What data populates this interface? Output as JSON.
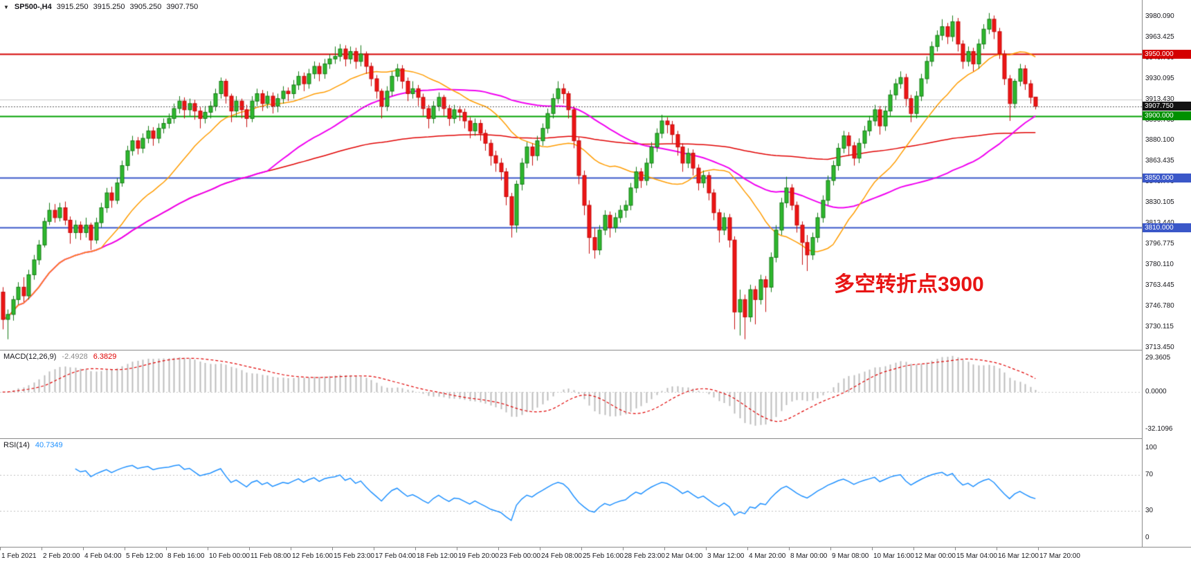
{
  "header": {
    "symbol_timeframe": "SP500-,H4",
    "open": "3915.250",
    "high": "3915.250",
    "low": "3905.250",
    "close": "3907.750"
  },
  "annotation": {
    "text": "多空转折点3900",
    "color": "#e81414"
  },
  "chart_data": {
    "type": "candlestick",
    "symbol": "SP500-",
    "timeframe": "H4",
    "title": "SP500-,H4 3915.250 3915.250 3905.250 3907.750",
    "ylim": [
      3711.5,
      3993.5
    ],
    "last_price": 3907.75,
    "y_ticks": [
      3980.09,
      3963.425,
      3946.76,
      3930.095,
      3913.43,
      3896.765,
      3880.1,
      3863.435,
      3846.77,
      3830.105,
      3813.44,
      3796.775,
      3780.11,
      3763.445,
      3746.78,
      3730.115,
      3713.45
    ],
    "x_labels": [
      "1 Feb 2021",
      "2 Feb 20:00",
      "4 Feb 04:00",
      "5 Feb 12:00",
      "8 Feb 16:00",
      "10 Feb 00:00",
      "11 Feb 08:00",
      "12 Feb 16:00",
      "15 Feb 23:00",
      "17 Feb 04:00",
      "18 Feb 12:00",
      "19 Feb 20:00",
      "23 Feb 00:00",
      "24 Feb 08:00",
      "25 Feb 16:00",
      "28 Feb 23:00",
      "2 Mar 04:00",
      "3 Mar 12:00",
      "4 Mar 20:00",
      "8 Mar 00:00",
      "9 Mar 08:00",
      "10 Mar 16:00",
      "12 Mar 00:00",
      "15 Mar 04:00",
      "16 Mar 12:00",
      "17 Mar 20:00"
    ],
    "hlines": [
      {
        "price": 3950.0,
        "color": "#d40000",
        "width": 2
      },
      {
        "price": 3913.5,
        "color": "#c8c8c8",
        "width": 1
      },
      {
        "price": 3900.0,
        "color": "#00a000",
        "width": 2
      },
      {
        "price": 3850.0,
        "color": "#3a57c8",
        "width": 2
      },
      {
        "price": 3810.0,
        "color": "#3a57c8",
        "width": 2
      }
    ],
    "price_tags": [
      {
        "text": "3950.000",
        "price": 3950.0,
        "bg": "#d40000"
      },
      {
        "text": "3907.750",
        "price": 3907.75,
        "bg": "#131313"
      },
      {
        "text": "3900.000",
        "price": 3900.0,
        "bg": "#009000"
      },
      {
        "text": "3850.000",
        "price": 3850.0,
        "bg": "#3a57c8"
      },
      {
        "text": "3810.000",
        "price": 3810.0,
        "bg": "#3a57c8"
      }
    ],
    "moving_averages": [
      {
        "period": 20,
        "color": "#ff9c00",
        "width": 1.5
      },
      {
        "period": 52,
        "color": "#f000f0",
        "width": 2
      },
      {
        "period": 160,
        "color": "#e00000",
        "width": 1.5
      }
    ],
    "candles": [
      [
        3758,
        3762,
        3728,
        3736
      ],
      [
        3736,
        3744,
        3720,
        3740
      ],
      [
        3740,
        3755,
        3735,
        3752
      ],
      [
        3752,
        3766,
        3748,
        3762
      ],
      [
        3762,
        3770,
        3750,
        3755
      ],
      [
        3755,
        3776,
        3752,
        3772
      ],
      [
        3772,
        3788,
        3768,
        3784
      ],
      [
        3784,
        3800,
        3780,
        3796
      ],
      [
        3796,
        3818,
        3794,
        3815
      ],
      [
        3815,
        3830,
        3812,
        3824
      ],
      [
        3824,
        3829,
        3814,
        3818
      ],
      [
        3818,
        3830,
        3815,
        3826
      ],
      [
        3826,
        3831,
        3812,
        3816
      ],
      [
        3816,
        3819,
        3797,
        3806
      ],
      [
        3806,
        3816,
        3801,
        3812
      ],
      [
        3812,
        3815,
        3800,
        3806
      ],
      [
        3806,
        3818,
        3802,
        3812
      ],
      [
        3812,
        3814,
        3792,
        3800
      ],
      [
        3800,
        3818,
        3797,
        3814
      ],
      [
        3814,
        3830,
        3810,
        3826
      ],
      [
        3826,
        3842,
        3822,
        3838
      ],
      [
        3838,
        3843,
        3826,
        3832
      ],
      [
        3832,
        3850,
        3829,
        3846
      ],
      [
        3846,
        3864,
        3843,
        3860
      ],
      [
        3860,
        3876,
        3856,
        3872
      ],
      [
        3872,
        3884,
        3868,
        3880
      ],
      [
        3880,
        3883,
        3869,
        3874
      ],
      [
        3874,
        3886,
        3870,
        3882
      ],
      [
        3882,
        3892,
        3878,
        3888
      ],
      [
        3888,
        3891,
        3876,
        3882
      ],
      [
        3882,
        3894,
        3878,
        3890
      ],
      [
        3890,
        3898,
        3886,
        3894
      ],
      [
        3894,
        3902,
        3890,
        3898
      ],
      [
        3898,
        3910,
        3894,
        3906
      ],
      [
        3906,
        3916,
        3902,
        3912
      ],
      [
        3912,
        3915,
        3898,
        3905
      ],
      [
        3905,
        3914,
        3900,
        3910
      ],
      [
        3910,
        3913,
        3897,
        3904
      ],
      [
        3904,
        3907,
        3890,
        3898
      ],
      [
        3898,
        3908,
        3894,
        3903
      ],
      [
        3903,
        3912,
        3898,
        3908
      ],
      [
        3908,
        3922,
        3904,
        3918
      ],
      [
        3918,
        3931,
        3914,
        3928
      ],
      [
        3928,
        3930,
        3910,
        3916
      ],
      [
        3916,
        3918,
        3895,
        3904
      ],
      [
        3904,
        3916,
        3899,
        3912
      ],
      [
        3912,
        3914,
        3898,
        3905
      ],
      [
        3905,
        3909,
        3891,
        3898
      ],
      [
        3898,
        3916,
        3895,
        3912
      ],
      [
        3912,
        3922,
        3908,
        3918
      ],
      [
        3918,
        3921,
        3904,
        3910
      ],
      [
        3910,
        3920,
        3906,
        3916
      ],
      [
        3916,
        3919,
        3902,
        3908
      ],
      [
        3908,
        3918,
        3903,
        3914
      ],
      [
        3914,
        3924,
        3910,
        3920
      ],
      [
        3920,
        3923,
        3912,
        3918
      ],
      [
        3918,
        3929,
        3914,
        3925
      ],
      [
        3925,
        3936,
        3921,
        3932
      ],
      [
        3932,
        3935,
        3920,
        3926
      ],
      [
        3926,
        3938,
        3922,
        3934
      ],
      [
        3934,
        3944,
        3930,
        3940
      ],
      [
        3940,
        3943,
        3928,
        3934
      ],
      [
        3934,
        3946,
        3930,
        3942
      ],
      [
        3942,
        3950,
        3938,
        3946
      ],
      [
        3946,
        3956,
        3942,
        3948
      ],
      [
        3948,
        3958,
        3944,
        3954
      ],
      [
        3954,
        3957,
        3940,
        3946
      ],
      [
        3946,
        3956,
        3942,
        3952
      ],
      [
        3952,
        3955,
        3938,
        3944
      ],
      [
        3944,
        3957,
        3940,
        3950
      ],
      [
        3950,
        3952,
        3934,
        3940
      ],
      [
        3940,
        3943,
        3924,
        3930
      ],
      [
        3930,
        3933,
        3914,
        3920
      ],
      [
        3920,
        3922,
        3898,
        3908
      ],
      [
        3908,
        3924,
        3904,
        3920
      ],
      [
        3920,
        3936,
        3916,
        3932
      ],
      [
        3932,
        3942,
        3928,
        3938
      ],
      [
        3938,
        3941,
        3922,
        3928
      ],
      [
        3928,
        3931,
        3912,
        3918
      ],
      [
        3918,
        3928,
        3914,
        3922
      ],
      [
        3922,
        3925,
        3908,
        3915
      ],
      [
        3915,
        3918,
        3900,
        3906
      ],
      [
        3906,
        3909,
        3890,
        3898
      ],
      [
        3898,
        3912,
        3894,
        3908
      ],
      [
        3908,
        3919,
        3904,
        3915
      ],
      [
        3915,
        3917,
        3900,
        3906
      ],
      [
        3906,
        3909,
        3892,
        3898
      ],
      [
        3898,
        3909,
        3894,
        3905
      ],
      [
        3905,
        3908,
        3896,
        3903
      ],
      [
        3903,
        3906,
        3890,
        3896
      ],
      [
        3896,
        3899,
        3882,
        3888
      ],
      [
        3888,
        3898,
        3884,
        3894
      ],
      [
        3894,
        3897,
        3880,
        3886
      ],
      [
        3886,
        3889,
        3872,
        3878
      ],
      [
        3878,
        3881,
        3860,
        3868
      ],
      [
        3868,
        3872,
        3855,
        3862
      ],
      [
        3862,
        3866,
        3848,
        3855
      ],
      [
        3855,
        3858,
        3828,
        3835
      ],
      [
        3835,
        3838,
        3802,
        3812
      ],
      [
        3812,
        3848,
        3806,
        3845
      ],
      [
        3845,
        3866,
        3840,
        3862
      ],
      [
        3862,
        3879,
        3858,
        3875
      ],
      [
        3875,
        3878,
        3860,
        3868
      ],
      [
        3868,
        3884,
        3864,
        3880
      ],
      [
        3880,
        3894,
        3876,
        3890
      ],
      [
        3890,
        3906,
        3886,
        3902
      ],
      [
        3902,
        3918,
        3898,
        3914
      ],
      [
        3914,
        3928,
        3910,
        3922
      ],
      [
        3922,
        3926,
        3910,
        3918
      ],
      [
        3918,
        3920,
        3898,
        3905
      ],
      [
        3905,
        3908,
        3874,
        3880
      ],
      [
        3880,
        3883,
        3845,
        3852
      ],
      [
        3852,
        3856,
        3820,
        3828
      ],
      [
        3828,
        3832,
        3789,
        3802
      ],
      [
        3802,
        3810,
        3785,
        3792
      ],
      [
        3792,
        3812,
        3788,
        3808
      ],
      [
        3808,
        3824,
        3804,
        3820
      ],
      [
        3820,
        3823,
        3802,
        3810
      ],
      [
        3810,
        3822,
        3806,
        3818
      ],
      [
        3818,
        3828,
        3814,
        3824
      ],
      [
        3824,
        3832,
        3818,
        3828
      ],
      [
        3828,
        3846,
        3824,
        3842
      ],
      [
        3842,
        3859,
        3838,
        3855
      ],
      [
        3855,
        3858,
        3842,
        3848
      ],
      [
        3848,
        3866,
        3844,
        3862
      ],
      [
        3862,
        3879,
        3858,
        3875
      ],
      [
        3875,
        3890,
        3871,
        3886
      ],
      [
        3886,
        3901,
        3882,
        3896
      ],
      [
        3896,
        3899,
        3886,
        3893
      ],
      [
        3893,
        3896,
        3878,
        3885
      ],
      [
        3885,
        3888,
        3868,
        3875
      ],
      [
        3875,
        3878,
        3855,
        3862
      ],
      [
        3862,
        3874,
        3858,
        3870
      ],
      [
        3870,
        3873,
        3852,
        3858
      ],
      [
        3858,
        3861,
        3840,
        3846
      ],
      [
        3846,
        3856,
        3842,
        3852
      ],
      [
        3852,
        3855,
        3832,
        3838
      ],
      [
        3838,
        3841,
        3816,
        3822
      ],
      [
        3822,
        3825,
        3798,
        3808
      ],
      [
        3808,
        3822,
        3804,
        3818
      ],
      [
        3818,
        3821,
        3794,
        3800
      ],
      [
        3800,
        3803,
        3728,
        3742
      ],
      [
        3742,
        3760,
        3723,
        3752
      ],
      [
        3752,
        3756,
        3720,
        3738
      ],
      [
        3738,
        3764,
        3734,
        3760
      ],
      [
        3760,
        3763,
        3732,
        3752
      ],
      [
        3752,
        3772,
        3748,
        3768
      ],
      [
        3768,
        3771,
        3742,
        3762
      ],
      [
        3762,
        3790,
        3758,
        3786
      ],
      [
        3786,
        3812,
        3782,
        3808
      ],
      [
        3808,
        3834,
        3804,
        3830
      ],
      [
        3830,
        3851,
        3826,
        3842
      ],
      [
        3842,
        3845,
        3824,
        3828
      ],
      [
        3828,
        3831,
        3806,
        3812
      ],
      [
        3812,
        3815,
        3780,
        3798
      ],
      [
        3798,
        3804,
        3775,
        3788
      ],
      [
        3788,
        3806,
        3784,
        3802
      ],
      [
        3802,
        3822,
        3798,
        3818
      ],
      [
        3818,
        3836,
        3814,
        3832
      ],
      [
        3832,
        3852,
        3828,
        3848
      ],
      [
        3848,
        3864,
        3844,
        3860
      ],
      [
        3860,
        3878,
        3856,
        3874
      ],
      [
        3874,
        3888,
        3870,
        3884
      ],
      [
        3884,
        3887,
        3868,
        3876
      ],
      [
        3876,
        3879,
        3860,
        3866
      ],
      [
        3866,
        3882,
        3862,
        3878
      ],
      [
        3878,
        3892,
        3874,
        3888
      ],
      [
        3888,
        3900,
        3884,
        3896
      ],
      [
        3896,
        3909,
        3892,
        3905
      ],
      [
        3905,
        3908,
        3885,
        3892
      ],
      [
        3892,
        3908,
        3888,
        3904
      ],
      [
        3904,
        3921,
        3900,
        3917
      ],
      [
        3917,
        3930,
        3913,
        3926
      ],
      [
        3926,
        3936,
        3922,
        3931
      ],
      [
        3931,
        3934,
        3908,
        3914
      ],
      [
        3914,
        3917,
        3895,
        3902
      ],
      [
        3902,
        3920,
        3898,
        3916
      ],
      [
        3916,
        3934,
        3912,
        3930
      ],
      [
        3930,
        3948,
        3926,
        3944
      ],
      [
        3944,
        3960,
        3940,
        3956
      ],
      [
        3956,
        3969,
        3952,
        3965
      ],
      [
        3965,
        3978,
        3961,
        3972
      ],
      [
        3972,
        3975,
        3958,
        3964
      ],
      [
        3964,
        3981,
        3960,
        3976
      ],
      [
        3976,
        3979,
        3952,
        3958
      ],
      [
        3958,
        3961,
        3938,
        3944
      ],
      [
        3944,
        3956,
        3940,
        3952
      ],
      [
        3952,
        3955,
        3936,
        3942
      ],
      [
        3942,
        3962,
        3938,
        3958
      ],
      [
        3958,
        3974,
        3954,
        3970
      ],
      [
        3970,
        3983,
        3966,
        3978
      ],
      [
        3978,
        3981,
        3962,
        3968
      ],
      [
        3968,
        3971,
        3946,
        3950
      ],
      [
        3950,
        3953,
        3925,
        3930
      ],
      [
        3930,
        3933,
        3896,
        3910
      ],
      [
        3910,
        3930,
        3906,
        3928
      ],
      [
        3928,
        3942,
        3924,
        3938
      ],
      [
        3938,
        3941,
        3921,
        3926
      ],
      [
        3926,
        3929,
        3910,
        3915
      ],
      [
        3915.25,
        3915.25,
        3905.25,
        3907.75
      ]
    ],
    "indicators": {
      "macd": {
        "label": "MACD(12,26,9)",
        "fast": 12,
        "slow": 26,
        "signal": 9,
        "value_main": "-2.4928",
        "value_signal": "6.3829",
        "histogram_color": "#bcbcbc",
        "signal_color": "#e00000",
        "ylim": [
          -40,
          36
        ],
        "ticks": [
          {
            "label": "29.3605",
            "value": 29.3605
          },
          {
            "label": "0.0000",
            "value": 0
          },
          {
            "label": "-32.1096",
            "value": -32.1096
          }
        ]
      },
      "rsi": {
        "label": "RSI(14)",
        "period": 14,
        "value": "40.7349",
        "color": "#1e90ff",
        "levels": [
          70,
          30
        ],
        "ylim": [
          -10,
          110
        ],
        "ticks": [
          {
            "label": "100",
            "value": 100
          },
          {
            "label": "70",
            "value": 70
          },
          {
            "label": "30",
            "value": 30
          },
          {
            "label": "0",
            "value": 0
          }
        ]
      }
    }
  }
}
